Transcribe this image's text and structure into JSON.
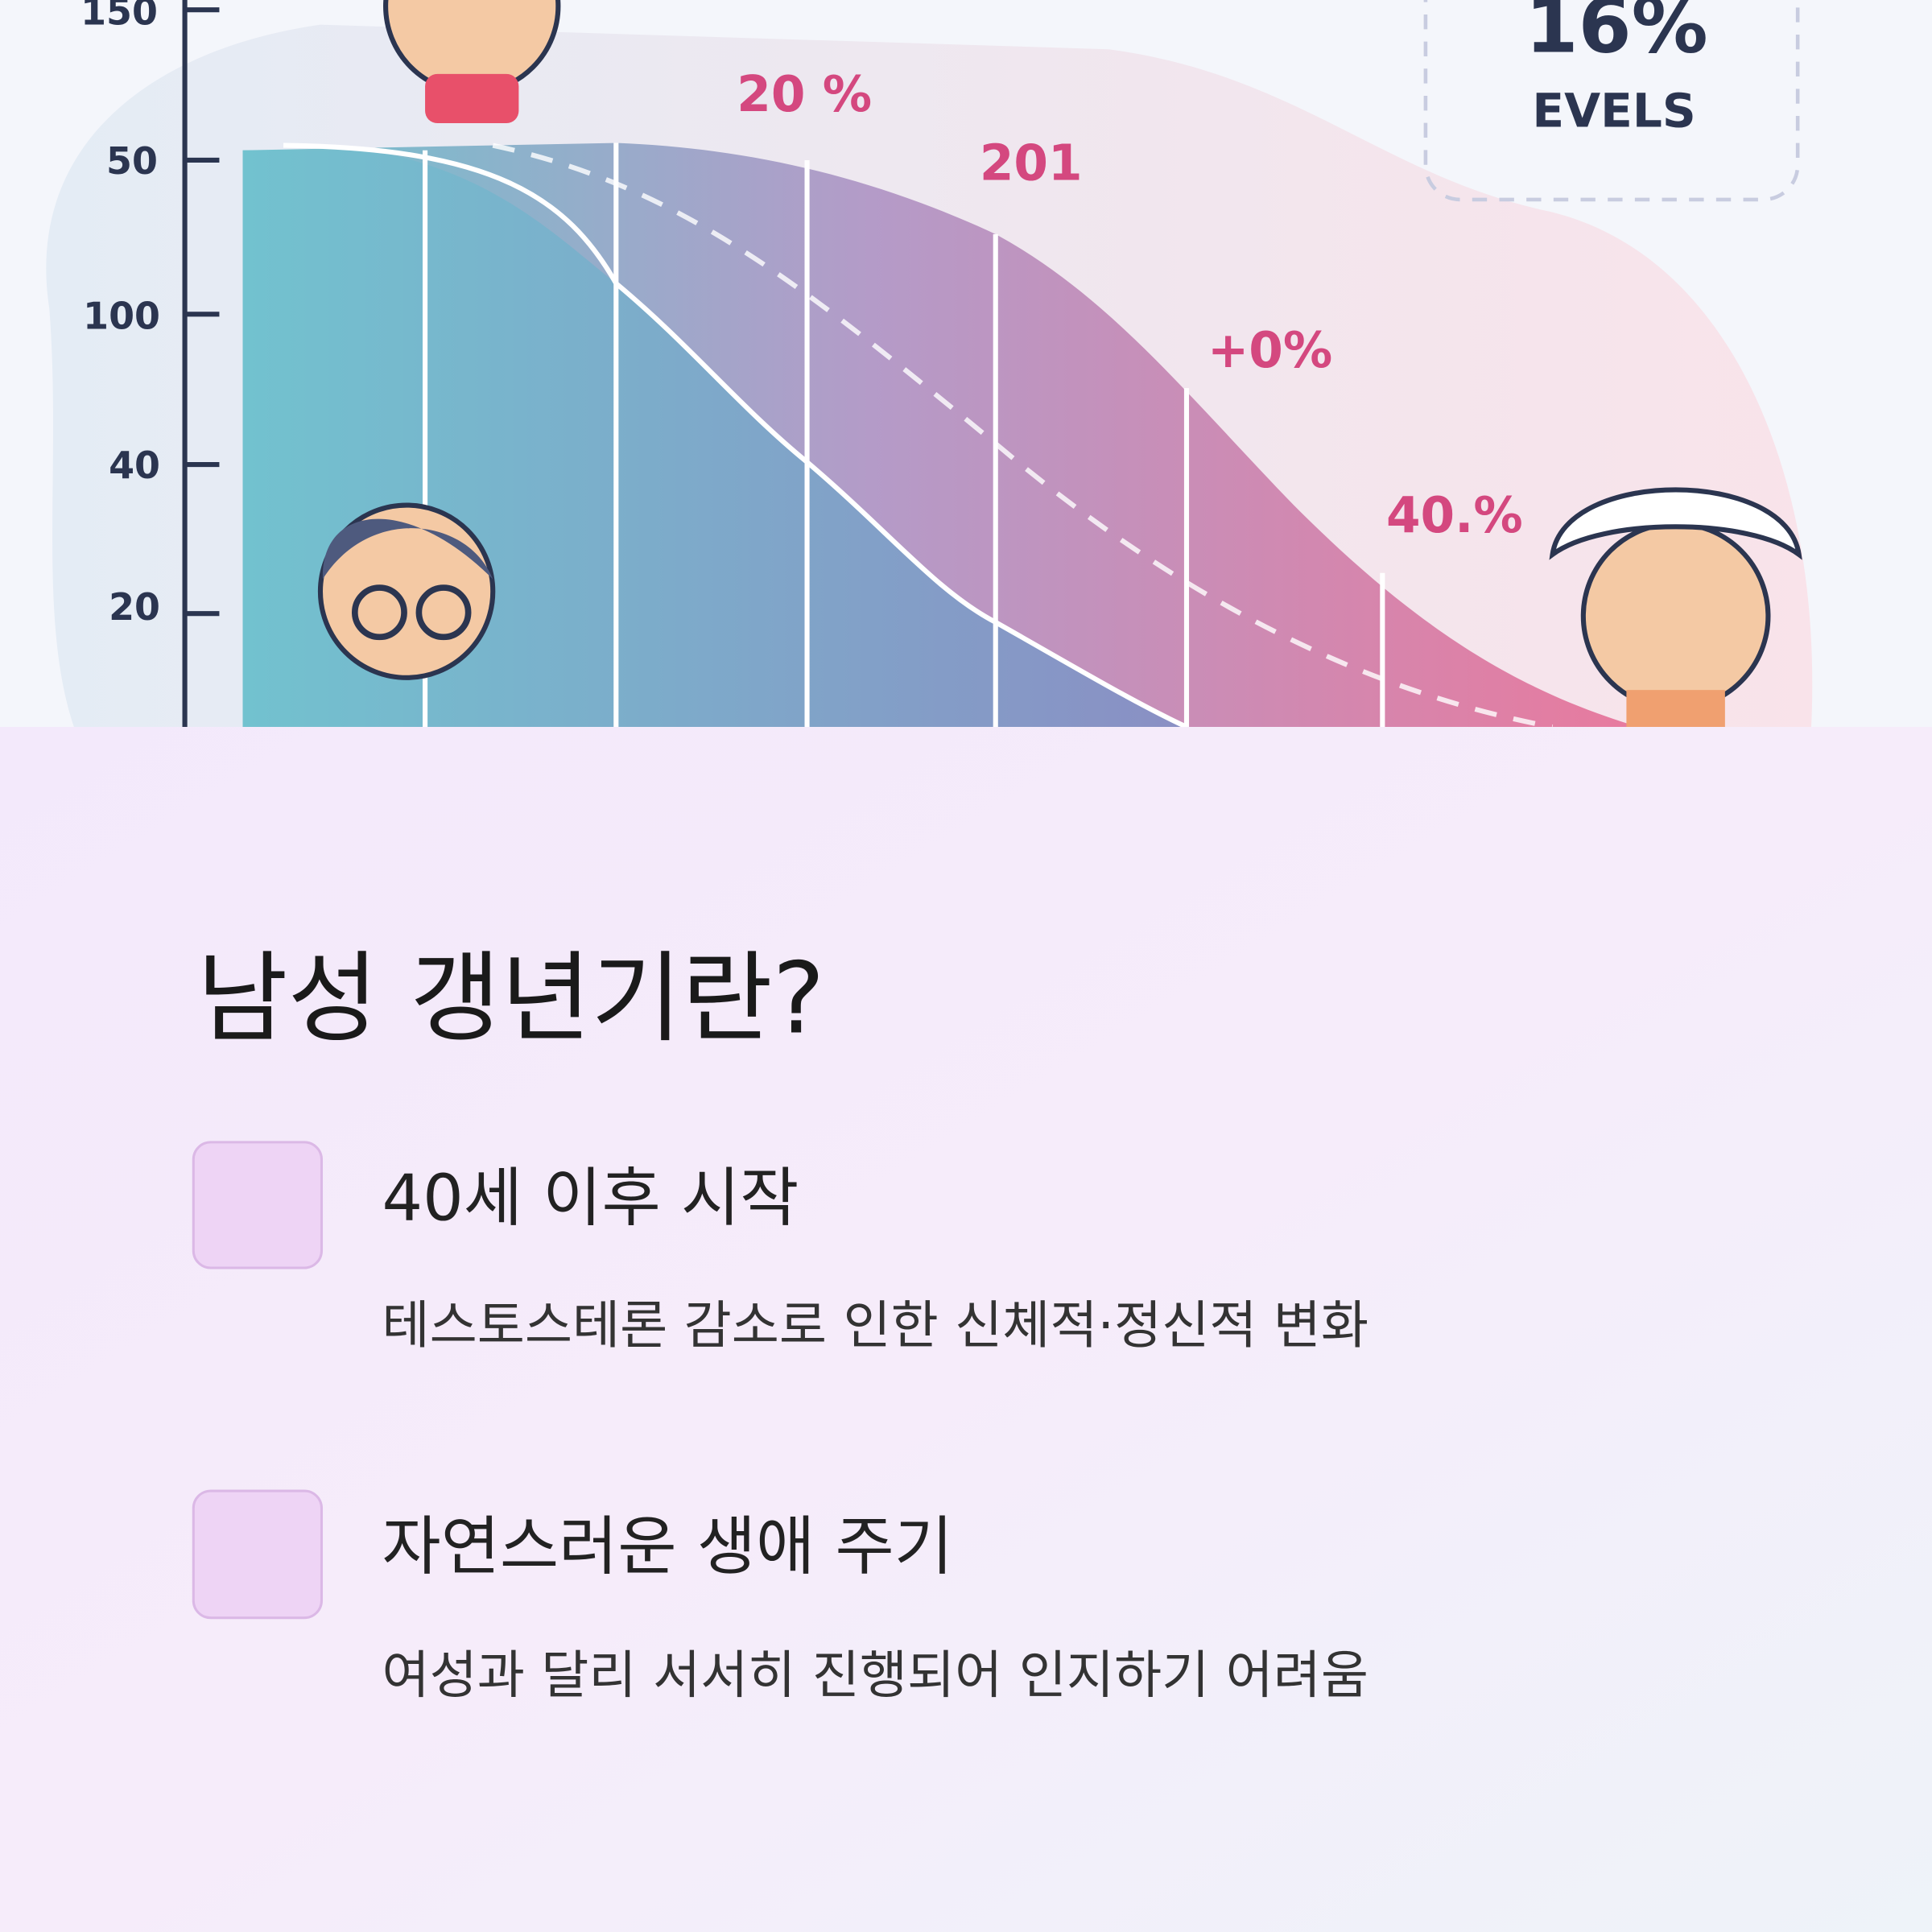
{
  "illustration": {
    "y_axis_labels": [
      "150",
      "50",
      "100",
      "40",
      "20"
    ],
    "annotations": [
      "20 %",
      "201",
      "+0%",
      "40.%"
    ],
    "badge": {
      "value": "16%",
      "label": "EVELS"
    }
  },
  "title": "남성 갱년기란?",
  "items": [
    {
      "heading": "40세 이후 시작",
      "description": "테스토스테론 감소로 인한 신체적·정신적 변화"
    },
    {
      "heading": "자연스러운 생애 주기",
      "description": "여성과 달리 서서히 진행되어 인지하기 어려움"
    }
  ]
}
